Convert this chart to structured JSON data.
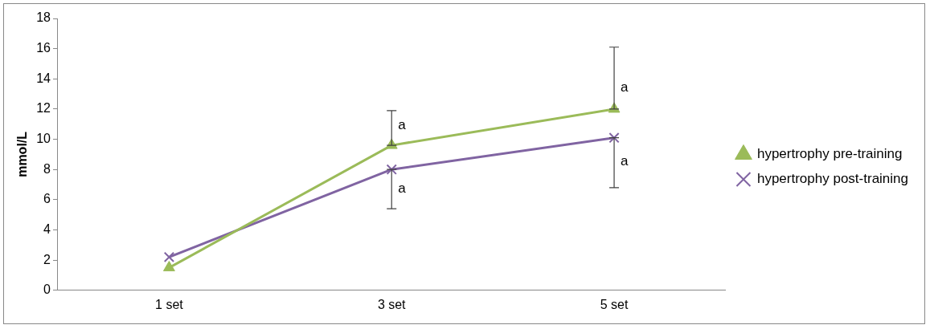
{
  "chart_data": {
    "type": "line",
    "ylabel": "mmol/L",
    "categories": [
      "1 set",
      "3 set",
      "5 set"
    ],
    "series": [
      {
        "name": "hypertrophy pre-training",
        "color": "#9bbb59",
        "marker": "triangle",
        "values": [
          1.5,
          9.6,
          12.0
        ],
        "errors": [
          null,
          [
            9.6,
            11.9
          ],
          [
            12.0,
            16.1
          ]
        ]
      },
      {
        "name": "hypertrophy post-training",
        "color": "#8064a2",
        "marker": "cross",
        "values": [
          2.2,
          8.0,
          10.1
        ],
        "errors": [
          null,
          [
            5.4,
            8.0
          ],
          [
            6.8,
            10.1
          ]
        ]
      }
    ],
    "ylim": [
      0,
      18
    ],
    "yticks": [
      0,
      2,
      4,
      6,
      8,
      10,
      12,
      14,
      16,
      18
    ],
    "grid": false,
    "legend": "right",
    "annotations": [
      {
        "text": "a",
        "x": "3 set",
        "y": 10.9
      },
      {
        "text": "a",
        "x": "3 set",
        "y": 6.7
      },
      {
        "text": "a",
        "x": "5 set",
        "y": 13.4
      },
      {
        "text": "a",
        "x": "5 set",
        "y": 8.5
      }
    ]
  }
}
